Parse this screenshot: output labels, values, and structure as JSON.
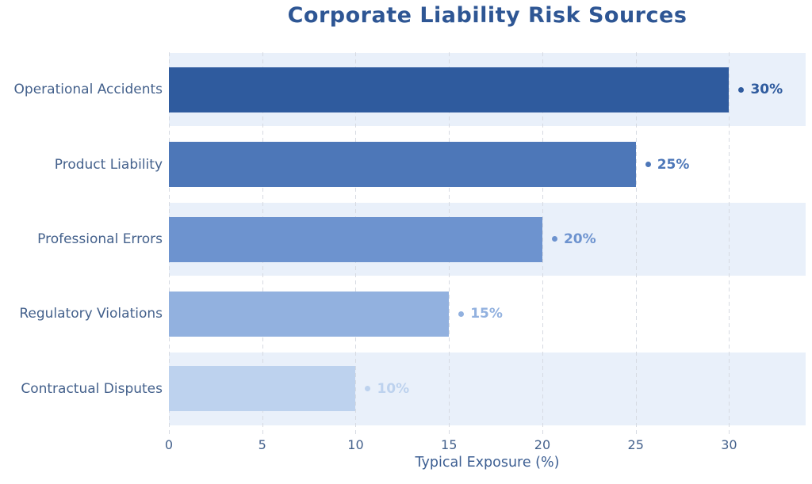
{
  "title": "Corporate Liability Risk Sources",
  "colors": {
    "background": "#ffffff",
    "title": "#2e5694",
    "category_label": "#44618c",
    "tick_label": "#44618c",
    "axis_label": "#3c5e92",
    "row_band": "#e9f0fa",
    "gridline": "#d6dae2"
  },
  "chart_data": {
    "type": "bar",
    "orientation": "horizontal",
    "title": "Corporate Liability Risk Sources",
    "categories": [
      "Operational Accidents",
      "Product Liability",
      "Professional Errors",
      "Regulatory Violations",
      "Contractual Disputes"
    ],
    "values": [
      30,
      25,
      20,
      15,
      10
    ],
    "value_labels": [
      "30%",
      "25%",
      "20%",
      "15%",
      "10%"
    ],
    "bar_colors": [
      "#2f5b9e",
      "#4d77b8",
      "#6d93cf",
      "#92b1df",
      "#bdd2ee"
    ],
    "xlabel": "Typical Exposure (%)",
    "ylabel": "",
    "x_ticks": [
      0,
      5,
      10,
      15,
      20,
      25,
      30
    ],
    "xlim": [
      0,
      34.1
    ],
    "grid": "vertical-dashed",
    "banded_rows": [
      0,
      2,
      4
    ],
    "legend": "none"
  }
}
